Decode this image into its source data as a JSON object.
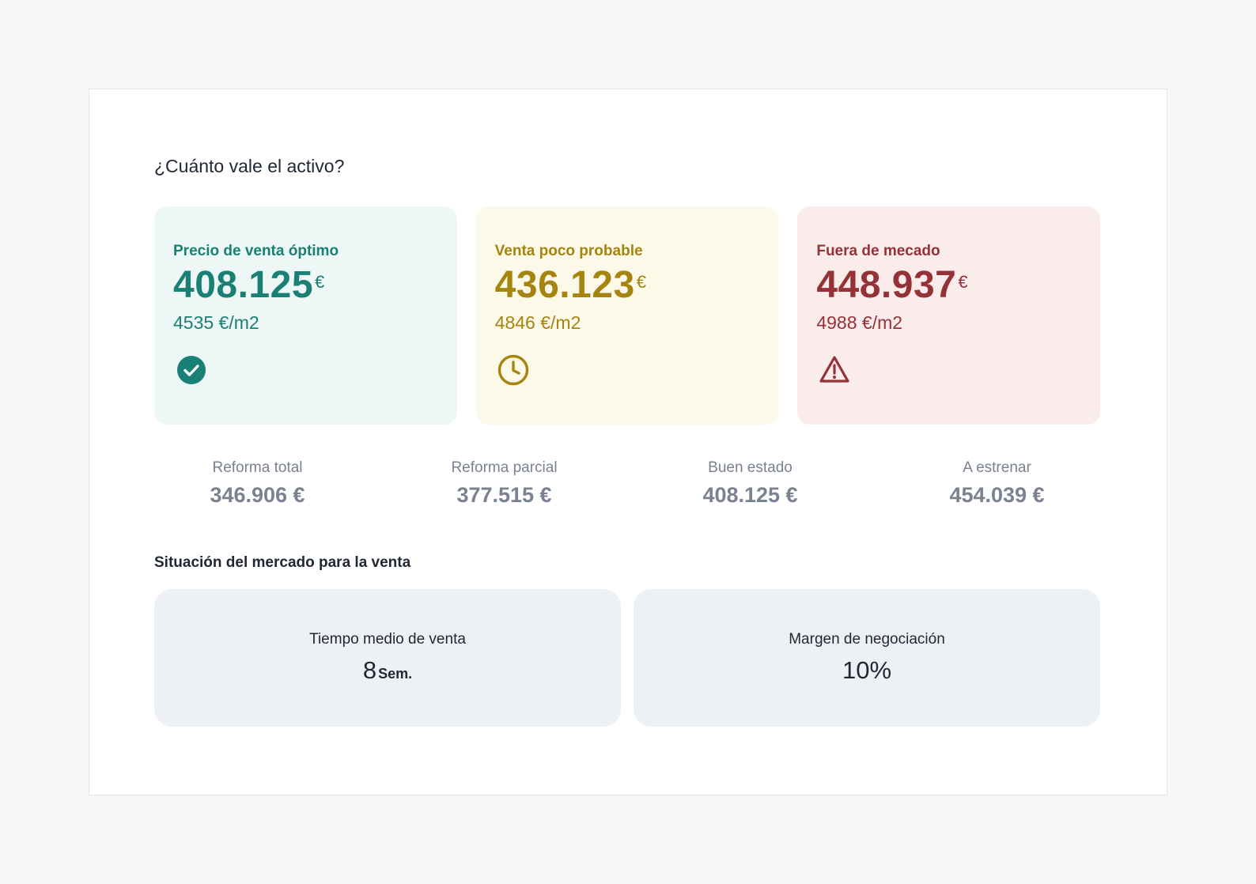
{
  "title": "¿Cuánto vale el activo?",
  "cards": [
    {
      "label": "Precio de venta óptimo",
      "price": "408.125",
      "currency": "€",
      "sqm": "4535 €/m2",
      "icon": "check-circle-icon",
      "color": "#1a7f74"
    },
    {
      "label": "Venta poco probable",
      "price": "436.123",
      "currency": "€",
      "sqm": "4846 €/m2",
      "icon": "clock-icon",
      "color": "#a68410"
    },
    {
      "label": "Fuera de mecado",
      "price": "448.937",
      "currency": "€",
      "sqm": "4988 €/m2",
      "icon": "warning-triangle-icon",
      "color": "#953238"
    }
  ],
  "states": [
    {
      "label": "Reforma total",
      "value": "346.906 €"
    },
    {
      "label": "Reforma parcial",
      "value": "377.515 €"
    },
    {
      "label": "Buen estado",
      "value": "408.125 €"
    },
    {
      "label": "A estrenar",
      "value": "454.039 €"
    }
  ],
  "market": {
    "title": "Situación del mercado para la venta",
    "time": {
      "label": "Tiempo medio de venta",
      "value": "8",
      "unit": "Sem."
    },
    "margin": {
      "label": "Margen de negociación",
      "value": "10%"
    }
  }
}
